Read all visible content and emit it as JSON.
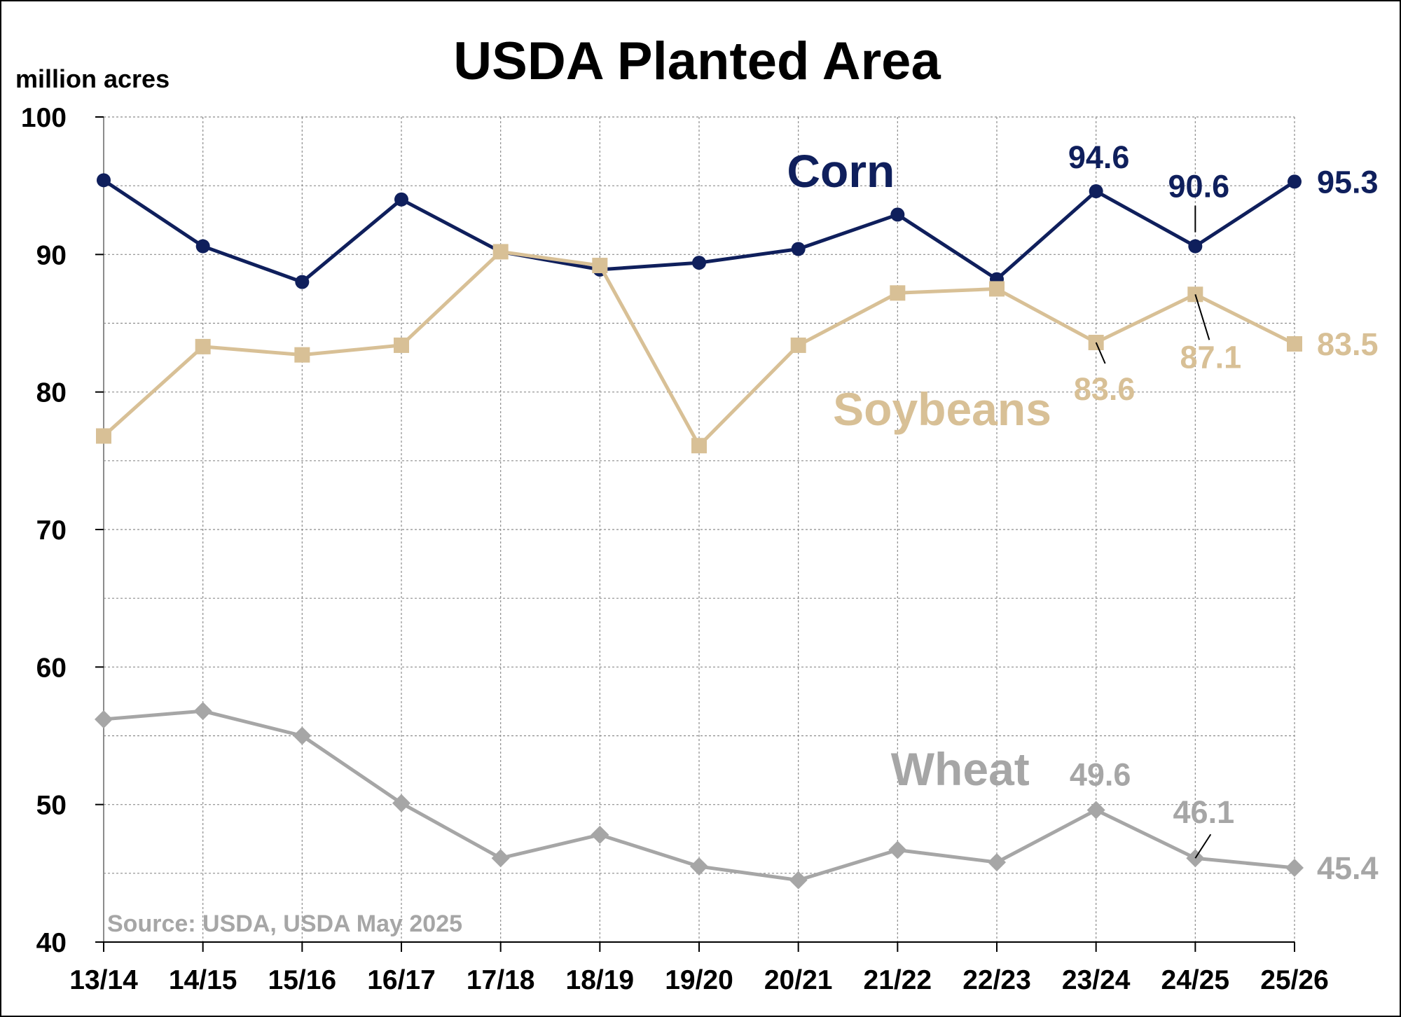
{
  "chart_data": {
    "type": "line",
    "title": "USDA Planted Area",
    "ylabel": "million acres",
    "source": "Source: USDA, USDA May 2025",
    "categories": [
      "13/14",
      "14/15",
      "15/16",
      "16/17",
      "17/18",
      "18/19",
      "19/20",
      "20/21",
      "21/22",
      "22/23",
      "23/24",
      "24/25",
      "25/26"
    ],
    "ylim": [
      40,
      100
    ],
    "yticks": [
      40,
      50,
      60,
      70,
      80,
      90,
      100
    ],
    "grid": true,
    "series": [
      {
        "name": "Corn",
        "color": "#0f1f5c",
        "marker": "circle",
        "values": [
          95.4,
          90.6,
          88.0,
          94.0,
          90.2,
          88.9,
          89.4,
          90.4,
          92.9,
          88.2,
          94.6,
          90.6,
          95.3
        ],
        "labels": [
          {
            "index": 10,
            "text": "94.6"
          },
          {
            "index": 11,
            "text": "90.6"
          },
          {
            "index": 12,
            "text": "95.3"
          }
        ]
      },
      {
        "name": "Soybeans",
        "color": "#d8c096",
        "marker": "square",
        "values": [
          76.8,
          83.3,
          82.7,
          83.4,
          90.2,
          89.2,
          76.1,
          83.4,
          87.2,
          87.5,
          83.6,
          87.1,
          83.5
        ],
        "labels": [
          {
            "index": 10,
            "text": "83.6"
          },
          {
            "index": 11,
            "text": "87.1"
          },
          {
            "index": 12,
            "text": "83.5"
          }
        ]
      },
      {
        "name": "Wheat",
        "color": "#a6a6a6",
        "marker": "diamond",
        "values": [
          56.2,
          56.8,
          55.0,
          50.1,
          46.1,
          47.8,
          45.5,
          44.5,
          46.7,
          45.8,
          49.6,
          46.1,
          45.4
        ],
        "labels": [
          {
            "index": 10,
            "text": "49.6"
          },
          {
            "index": 11,
            "text": "46.1"
          },
          {
            "index": 12,
            "text": "45.4"
          }
        ]
      }
    ]
  }
}
